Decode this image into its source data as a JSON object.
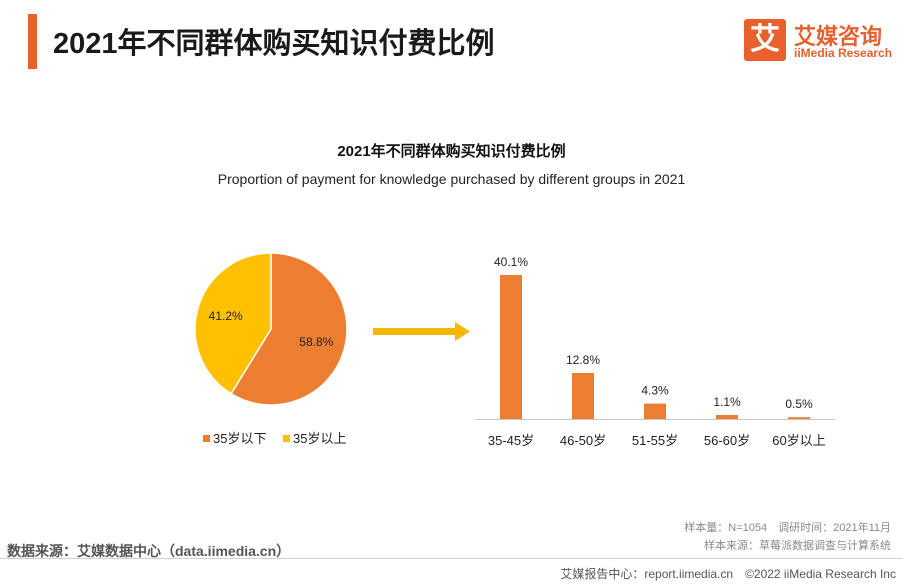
{
  "header": {
    "title": "2021年不同群体购买知识付费比例",
    "logo_icon_char": "艾",
    "logo_cn": "艾媒咨询",
    "logo_en": "iiMedia Research"
  },
  "colors": {
    "orange": "#ED7D31",
    "yellow": "#FFC000",
    "accent": "#E8612C",
    "arrow": "#F5B800"
  },
  "chart_data": [
    {
      "type": "pie",
      "title": "2021年不同群体购买知识付费比例",
      "subtitle": "Proportion of payment for knowledge purchased by different groups in 2021",
      "slices": [
        {
          "label": "35岁以下",
          "value": 58.8,
          "display": "58.8%",
          "color": "#ED7D31"
        },
        {
          "label": "35岁以上",
          "value": 41.2,
          "display": "41.2%",
          "color": "#FFC000"
        }
      ],
      "legend": [
        "35岁以下",
        "35岁以上"
      ],
      "legend_position": "bottom"
    },
    {
      "type": "bar",
      "categories": [
        "35-45岁",
        "46-50岁",
        "51-55岁",
        "56-60岁",
        "60岁以上"
      ],
      "values": [
        40.1,
        12.8,
        4.3,
        1.1,
        0.5
      ],
      "labels": [
        "40.1%",
        "12.8%",
        "4.3%",
        "1.1%",
        "0.5%"
      ],
      "ylim": [
        0,
        40.1
      ],
      "color": "#ED7D31"
    }
  ],
  "footer": {
    "source": "数据来源：艾媒数据中心（data.iimedia.cn）",
    "sample_info": "样本量：N=1054　调研时间：2021年11月",
    "sample_source": "样本来源：草莓派数据调查与计算系统",
    "report": "艾媒报告中心：report.iimedia.cn　©2022  iiMedia Research  Inc"
  }
}
